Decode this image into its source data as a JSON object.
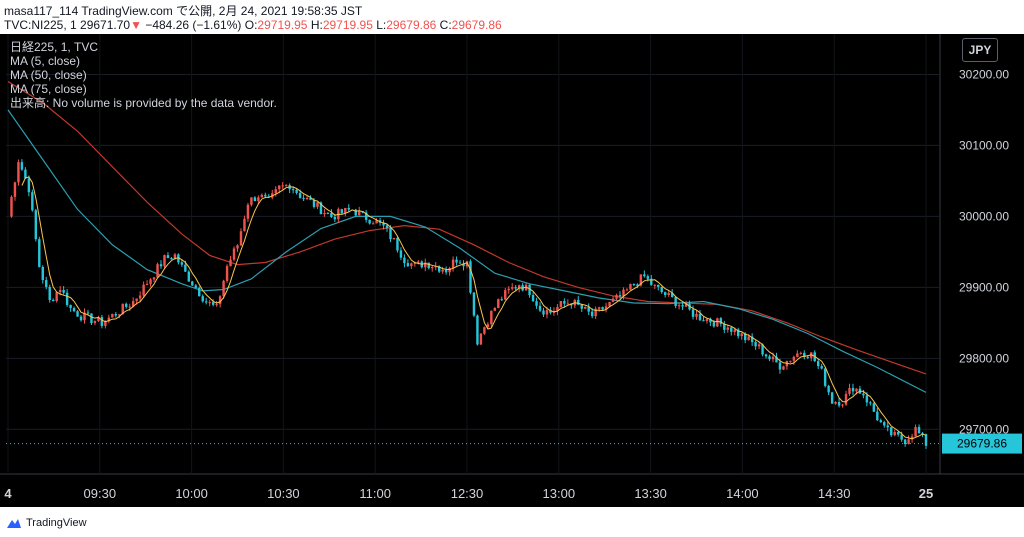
{
  "header": {
    "line1": "masa117_114 TradingView.com で公開, 2月 24, 2021 19:58:35 JST",
    "symbol": "TVC:NI225, 1 29671.70",
    "arrow": "▼",
    "change": "−484.26 (−1.61%)",
    "o_label": "O:",
    "o_value": "29719.95",
    "h_label": "H:",
    "h_value": "29719.95",
    "l_label": "L:",
    "l_value": "29679.86",
    "c_label": "C:",
    "c_value": "29679.86"
  },
  "legend": {
    "title": "日経225, 1, TVC",
    "ma5": "MA (5, close)",
    "ma50": "MA (50, close)",
    "ma75": "MA (75, close)",
    "volume_note": "出来高: No volume is provided by the data vendor."
  },
  "currency_button": "JPY",
  "price_badge": "29679.86",
  "footer": {
    "brand": "TradingView"
  },
  "colors": {
    "up": "#ef5350",
    "down": "#26c6da",
    "ma5": "#f9c74f",
    "ma50": "#2a9fb0",
    "ma75": "#c0392b",
    "badge": "#26c6da",
    "background": "#000000"
  },
  "chart_data": {
    "type": "candlestick",
    "x_ticks": [
      "4",
      "09:30",
      "10:00",
      "10:30",
      "11:00",
      "12:30",
      "13:00",
      "13:30",
      "14:00",
      "14:30",
      "25"
    ],
    "y_ticks": [
      "30200.00",
      "30100.00",
      "30000.00",
      "29900.00",
      "29800.00",
      "29700.00"
    ],
    "ylim": [
      29637,
      30257
    ],
    "close_path": [
      [
        0,
        30000
      ],
      [
        3,
        30080
      ],
      [
        6,
        30040
      ],
      [
        9,
        29930
      ],
      [
        12,
        29880
      ],
      [
        15,
        29900
      ],
      [
        18,
        29870
      ],
      [
        21,
        29860
      ],
      [
        24,
        29855
      ],
      [
        27,
        29850
      ],
      [
        30,
        29860
      ],
      [
        33,
        29870
      ],
      [
        36,
        29880
      ],
      [
        39,
        29900
      ],
      [
        42,
        29920
      ],
      [
        45,
        29940
      ],
      [
        48,
        29945
      ],
      [
        51,
        29920
      ],
      [
        54,
        29900
      ],
      [
        57,
        29880
      ],
      [
        60,
        29870
      ],
      [
        63,
        29930
      ],
      [
        66,
        29960
      ],
      [
        69,
        30020
      ],
      [
        72,
        30030
      ],
      [
        75,
        30020
      ],
      [
        78,
        30040
      ],
      [
        81,
        30045
      ],
      [
        84,
        30030
      ],
      [
        87,
        30020
      ],
      [
        90,
        30010
      ],
      [
        93,
        30000
      ],
      [
        96,
        30005
      ],
      [
        99,
        30010
      ],
      [
        102,
        30000
      ],
      [
        105,
        29995
      ],
      [
        108,
        29985
      ],
      [
        111,
        29965
      ],
      [
        114,
        29940
      ],
      [
        117,
        29930
      ],
      [
        120,
        29935
      ],
      [
        123,
        29930
      ],
      [
        126,
        29925
      ],
      [
        129,
        29940
      ],
      [
        132,
        29935
      ],
      [
        135,
        29825
      ],
      [
        138,
        29855
      ],
      [
        141,
        29880
      ],
      [
        144,
        29895
      ],
      [
        147,
        29905
      ],
      [
        150,
        29895
      ],
      [
        153,
        29870
      ],
      [
        156,
        29865
      ],
      [
        159,
        29875
      ],
      [
        162,
        29880
      ],
      [
        165,
        29870
      ],
      [
        168,
        29860
      ],
      [
        171,
        29870
      ],
      [
        174,
        29880
      ],
      [
        177,
        29890
      ],
      [
        180,
        29905
      ],
      [
        183,
        29915
      ],
      [
        186,
        29900
      ],
      [
        189,
        29890
      ],
      [
        192,
        29880
      ],
      [
        195,
        29870
      ],
      [
        198,
        29860
      ],
      [
        201,
        29855
      ],
      [
        204,
        29850
      ],
      [
        207,
        29845
      ],
      [
        210,
        29835
      ],
      [
        213,
        29825
      ],
      [
        216,
        29815
      ],
      [
        219,
        29800
      ],
      [
        222,
        29790
      ],
      [
        225,
        29800
      ],
      [
        228,
        29810
      ],
      [
        231,
        29805
      ],
      [
        234,
        29780
      ],
      [
        237,
        29740
      ],
      [
        240,
        29740
      ],
      [
        243,
        29760
      ],
      [
        246,
        29750
      ],
      [
        249,
        29725
      ],
      [
        252,
        29700
      ],
      [
        255,
        29690
      ],
      [
        258,
        29685
      ],
      [
        261,
        29700
      ],
      [
        264,
        29680
      ]
    ],
    "ma50_path": [
      [
        0,
        30150
      ],
      [
        10,
        30080
      ],
      [
        20,
        30010
      ],
      [
        30,
        29960
      ],
      [
        40,
        29925
      ],
      [
        50,
        29905
      ],
      [
        56,
        29895
      ],
      [
        62,
        29897
      ],
      [
        70,
        29912
      ],
      [
        80,
        29950
      ],
      [
        90,
        29983
      ],
      [
        100,
        30000
      ],
      [
        110,
        30000
      ],
      [
        120,
        29985
      ],
      [
        130,
        29955
      ],
      [
        140,
        29920
      ],
      [
        150,
        29905
      ],
      [
        160,
        29895
      ],
      [
        170,
        29885
      ],
      [
        180,
        29878
      ],
      [
        190,
        29877
      ],
      [
        200,
        29880
      ],
      [
        210,
        29870
      ],
      [
        220,
        29855
      ],
      [
        230,
        29835
      ],
      [
        240,
        29810
      ],
      [
        250,
        29787
      ],
      [
        264,
        29752
      ]
    ],
    "ma75_path": [
      [
        0,
        30190
      ],
      [
        10,
        30160
      ],
      [
        20,
        30120
      ],
      [
        30,
        30070
      ],
      [
        40,
        30020
      ],
      [
        50,
        29975
      ],
      [
        58,
        29945
      ],
      [
        66,
        29932
      ],
      [
        74,
        29935
      ],
      [
        84,
        29950
      ],
      [
        94,
        29968
      ],
      [
        104,
        29980
      ],
      [
        114,
        29987
      ],
      [
        124,
        29982
      ],
      [
        134,
        29960
      ],
      [
        144,
        29935
      ],
      [
        154,
        29915
      ],
      [
        164,
        29900
      ],
      [
        174,
        29888
      ],
      [
        184,
        29880
      ],
      [
        194,
        29878
      ],
      [
        204,
        29876
      ],
      [
        214,
        29867
      ],
      [
        224,
        29850
      ],
      [
        234,
        29830
      ],
      [
        244,
        29812
      ],
      [
        254,
        29795
      ],
      [
        264,
        29778
      ]
    ]
  }
}
